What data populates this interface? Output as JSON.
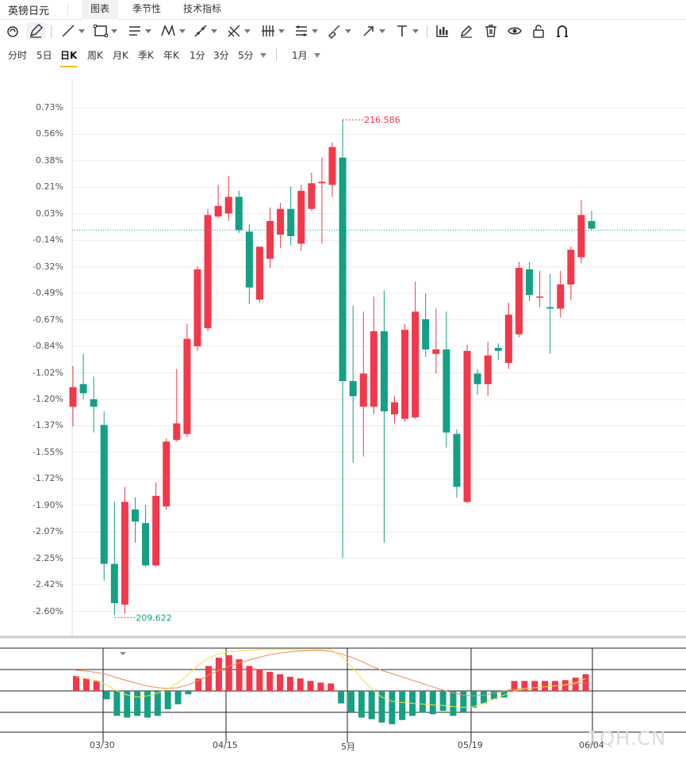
{
  "header": {
    "title": "英镑日元",
    "tabs": [
      {
        "label": "图表",
        "active": true
      },
      {
        "label": "季节性",
        "active": false
      },
      {
        "label": "技术指标",
        "active": false
      }
    ]
  },
  "toolbar": {
    "tools": [
      "magnet-icon",
      "pencil-icon",
      "line-icon",
      "rectangle-icon",
      "parallel-lines-icon",
      "pattern-icon",
      "ray-icon",
      "fork-icon",
      "fibonacci-icon",
      "channel-icon",
      "brush-icon",
      "arrow-icon",
      "text-icon",
      "chart-type-icon",
      "edit-icon",
      "trash-icon",
      "eye-icon",
      "lock-icon",
      "magnet-u-icon"
    ]
  },
  "periods": {
    "items": [
      {
        "label": "分时",
        "active": false
      },
      {
        "label": "5日",
        "active": false
      },
      {
        "label": "日K",
        "active": true
      },
      {
        "label": "周K",
        "active": false
      },
      {
        "label": "月K",
        "active": false
      },
      {
        "label": "季K",
        "active": false
      },
      {
        "label": "年K",
        "active": false
      },
      {
        "label": "1分",
        "active": false
      },
      {
        "label": "3分",
        "active": false
      },
      {
        "label": "5分",
        "active": false
      }
    ],
    "range_label": "1月"
  },
  "colors": {
    "up": "#f2384a",
    "down": "#14a085",
    "ma_fast": "#f5e04a",
    "ma_slow": "#f08a5a"
  },
  "watermark": "1QH.CN",
  "chart_data": {
    "type": "candlestick",
    "y_unit": "%",
    "y_ticks": [
      "0.73%",
      "0.56%",
      "0.38%",
      "0.21%",
      "0.03%",
      "-0.14%",
      "-0.32%",
      "-0.49%",
      "-0.67%",
      "-0.84%",
      "-1.02%",
      "-1.20%",
      "-1.37%",
      "-1.55%",
      "-1.72%",
      "-1.90%",
      "-2.07%",
      "-2.25%",
      "-2.42%",
      "-2.60%"
    ],
    "ylim": [
      -2.75,
      0.85
    ],
    "reference_level": -0.08,
    "x_labels": [
      "03/30",
      "04/15",
      "5月",
      "05/19",
      "06/04"
    ],
    "annotations": {
      "high": "216.586",
      "low": "209.622"
    },
    "candles": [
      {
        "o": -1.25,
        "c": -1.12,
        "h": -0.98,
        "l": -1.38
      },
      {
        "o": -1.1,
        "c": -1.16,
        "h": -0.9,
        "l": -1.2
      },
      {
        "o": -1.2,
        "c": -1.25,
        "h": -1.05,
        "l": -1.42
      },
      {
        "o": -1.37,
        "c": -2.29,
        "h": -1.28,
        "l": -2.4
      },
      {
        "o": -2.29,
        "c": -2.55,
        "h": -1.88,
        "l": -2.63
      },
      {
        "o": -2.56,
        "c": -1.88,
        "h": -1.78,
        "l": -2.62
      },
      {
        "o": -1.93,
        "c": -2.01,
        "h": -1.85,
        "l": -2.15
      },
      {
        "o": -2.02,
        "c": -2.3,
        "h": -1.9,
        "l": -2.31
      },
      {
        "o": -2.3,
        "c": -1.84,
        "h": -1.75,
        "l": -2.31
      },
      {
        "o": -1.91,
        "c": -1.48,
        "h": -1.46,
        "l": -1.93
      },
      {
        "o": -1.47,
        "c": -1.36,
        "h": -1.0,
        "l": -1.48
      },
      {
        "o": -1.43,
        "c": -0.8,
        "h": -0.7,
        "l": -1.45
      },
      {
        "o": -0.85,
        "c": -0.34,
        "h": -0.32,
        "l": -0.88
      },
      {
        "o": -0.73,
        "c": 0.02,
        "h": 0.06,
        "l": -0.75
      },
      {
        "o": 0.01,
        "c": 0.08,
        "h": 0.22,
        "l": 0.0
      },
      {
        "o": 0.03,
        "c": 0.14,
        "h": 0.28,
        "l": -0.02
      },
      {
        "o": 0.14,
        "c": -0.08,
        "h": 0.18,
        "l": -0.1
      },
      {
        "o": -0.09,
        "c": -0.46,
        "h": -0.04,
        "l": -0.57
      },
      {
        "o": -0.54,
        "c": -0.19,
        "h": -0.19,
        "l": -0.56
      },
      {
        "o": -0.27,
        "c": -0.02,
        "h": 0.07,
        "l": -0.33
      },
      {
        "o": -0.11,
        "c": 0.06,
        "h": 0.1,
        "l": -0.2
      },
      {
        "o": 0.06,
        "c": -0.12,
        "h": 0.21,
        "l": -0.18
      },
      {
        "o": -0.17,
        "c": 0.18,
        "h": 0.22,
        "l": -0.22
      },
      {
        "o": 0.06,
        "c": 0.23,
        "h": 0.3,
        "l": 0.05
      },
      {
        "o": 0.23,
        "c": 0.24,
        "h": 0.4,
        "l": -0.17
      },
      {
        "o": 0.22,
        "c": 0.47,
        "h": 0.5,
        "l": 0.14
      },
      {
        "o": 0.4,
        "c": -1.08,
        "h": 0.65,
        "l": -2.25
      },
      {
        "o": -1.08,
        "c": -1.18,
        "h": -0.58,
        "l": -1.62
      },
      {
        "o": -1.25,
        "c": -1.03,
        "h": -0.62,
        "l": -1.58
      },
      {
        "o": -1.25,
        "c": -0.75,
        "h": -0.52,
        "l": -1.3
      },
      {
        "o": -0.75,
        "c": -1.28,
        "h": -0.48,
        "l": -2.15
      },
      {
        "o": -1.3,
        "c": -1.22,
        "h": -1.18,
        "l": -1.36
      },
      {
        "o": -1.33,
        "c": -0.74,
        "h": -0.7,
        "l": -1.35
      },
      {
        "o": -1.32,
        "c": -0.62,
        "h": -0.42,
        "l": -1.33
      },
      {
        "o": -0.67,
        "c": -0.87,
        "h": -0.5,
        "l": -0.92
      },
      {
        "o": -0.9,
        "c": -0.87,
        "h": -0.6,
        "l": -1.03
      },
      {
        "o": -0.87,
        "c": -1.42,
        "h": -0.62,
        "l": -1.52
      },
      {
        "o": -1.43,
        "c": -1.78,
        "h": -1.4,
        "l": -1.85
      },
      {
        "o": -1.88,
        "c": -0.88,
        "h": -0.84,
        "l": -1.89
      },
      {
        "o": -1.03,
        "c": -1.1,
        "h": -1.0,
        "l": -1.17
      },
      {
        "o": -1.1,
        "c": -0.91,
        "h": -0.82,
        "l": -1.18
      },
      {
        "o": -0.86,
        "c": -0.88,
        "h": -0.83,
        "l": -0.94
      },
      {
        "o": -0.96,
        "c": -0.64,
        "h": -0.56,
        "l": -1.0
      },
      {
        "o": -0.77,
        "c": -0.33,
        "h": -0.29,
        "l": -0.79
      },
      {
        "o": -0.34,
        "c": -0.51,
        "h": -0.29,
        "l": -0.55
      },
      {
        "o": -0.52,
        "c": -0.52,
        "h": -0.35,
        "l": -0.59
      },
      {
        "o": -0.59,
        "c": -0.6,
        "h": -0.37,
        "l": -0.9
      },
      {
        "o": -0.6,
        "c": -0.44,
        "h": -0.35,
        "l": -0.66
      },
      {
        "o": -0.44,
        "c": -0.21,
        "h": -0.19,
        "l": -0.54
      },
      {
        "o": -0.26,
        "c": 0.02,
        "h": 0.12,
        "l": -0.3
      },
      {
        "o": -0.02,
        "c": -0.07,
        "h": 0.05,
        "l": -0.08
      }
    ],
    "macd": [
      18,
      15,
      12,
      -10,
      -30,
      -32,
      -30,
      -32,
      -30,
      -22,
      -16,
      -4,
      15,
      30,
      40,
      43,
      38,
      30,
      26,
      23,
      20,
      17,
      15,
      12,
      10,
      9,
      -15,
      -25,
      -32,
      -34,
      -38,
      -40,
      -35,
      -30,
      -26,
      -28,
      -24,
      -30,
      -25,
      -20,
      -15,
      -10,
      -8,
      12,
      12,
      12,
      12,
      12,
      13,
      16,
      20
    ],
    "ma_fast": [
      0.35,
      0.3,
      0.25,
      0.15,
      0.0,
      -0.1,
      -0.15,
      -0.12,
      -0.05,
      0.05,
      0.2,
      0.4,
      0.62,
      0.8,
      0.9,
      0.95,
      0.97,
      0.98,
      1.0,
      1.0,
      1.0,
      1.0,
      1.0,
      1.0,
      1.0,
      1.0,
      0.85,
      0.6,
      0.3,
      0.05,
      -0.15,
      -0.25,
      -0.28,
      -0.3,
      -0.32,
      -0.34,
      -0.35,
      -0.38,
      -0.4,
      -0.38,
      -0.3,
      -0.2,
      -0.1,
      0.0,
      0.05,
      0.08,
      0.1,
      0.12,
      0.15,
      0.2,
      0.3
    ],
    "ma_slow": [
      0.5,
      0.48,
      0.45,
      0.4,
      0.32,
      0.25,
      0.18,
      0.12,
      0.08,
      0.06,
      0.08,
      0.15,
      0.25,
      0.38,
      0.5,
      0.6,
      0.68,
      0.75,
      0.82,
      0.88,
      0.92,
      0.95,
      0.97,
      0.98,
      0.98,
      0.96,
      0.9,
      0.82,
      0.72,
      0.6,
      0.5,
      0.42,
      0.34,
      0.26,
      0.18,
      0.1,
      0.02,
      -0.05,
      -0.1,
      -0.12,
      -0.1,
      -0.05,
      0.0,
      0.04,
      0.06,
      0.08,
      0.1,
      0.12,
      0.14,
      0.17,
      0.2
    ]
  }
}
